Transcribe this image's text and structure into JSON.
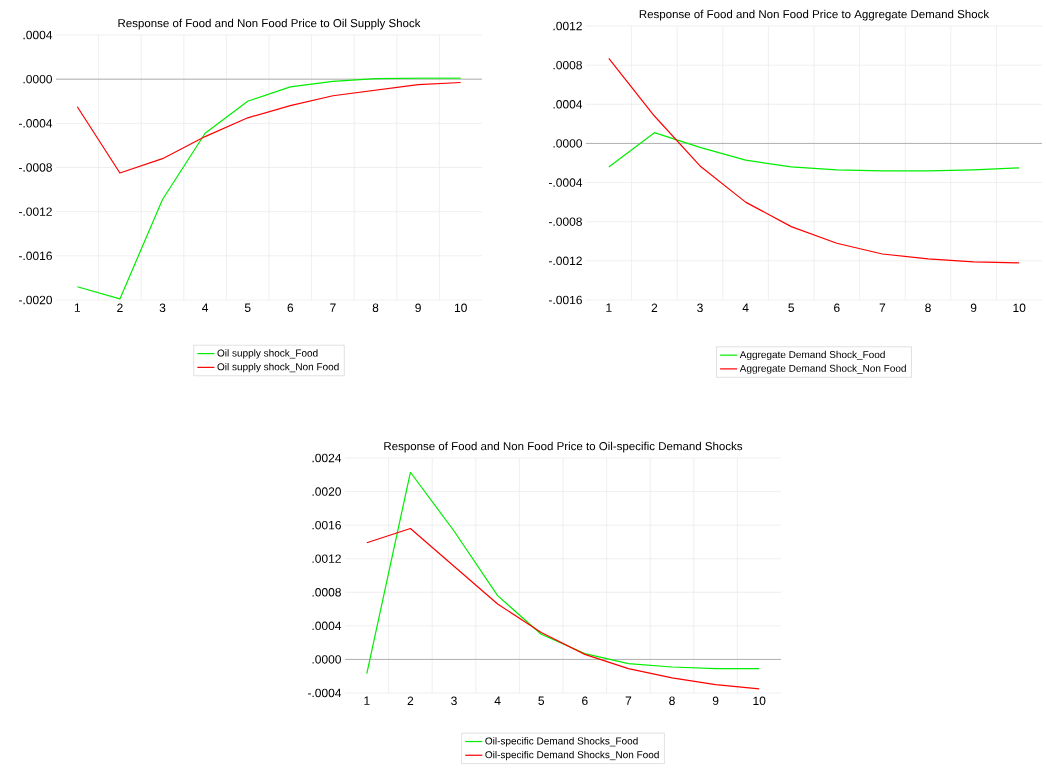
{
  "chart_data": [
    {
      "type": "line",
      "title": "Response of Food and Non Food Price to Oil Supply Shock",
      "categories": [
        "1",
        "2",
        "3",
        "4",
        "5",
        "6",
        "7",
        "8",
        "9",
        "10"
      ],
      "series": [
        {
          "name": "Oil supply shock_Food",
          "color": "#00ee00",
          "values": [
            -0.00188,
            -0.00199,
            -0.00109,
            -0.00049,
            -0.0002,
            -7e-05,
            -2e-05,
            5e-06,
            1e-05,
            1e-05
          ]
        },
        {
          "name": "Oil supply shock_Non Food",
          "color": "#ff0000",
          "values": [
            -0.00025,
            -0.00085,
            -0.00072,
            -0.00052,
            -0.00035,
            -0.00024,
            -0.00015,
            -0.0001,
            -5e-05,
            -3e-05
          ]
        }
      ],
      "ylim": [
        -0.002,
        0.0004
      ],
      "yticks": [
        {
          "value": -0.002,
          "label": "-.0020"
        },
        {
          "value": -0.0016,
          "label": "-.0016"
        },
        {
          "value": -0.0012,
          "label": "-.0012"
        },
        {
          "value": -0.0008,
          "label": "-.0008"
        },
        {
          "value": -0.0004,
          "label": "-.0004"
        },
        {
          "value": 0,
          "label": ".0000"
        },
        {
          "value": 0.0004,
          "label": ".0004"
        }
      ],
      "ref_lines": [
        {
          "axis": "y",
          "value": 0,
          "color": "#a0a0a0"
        }
      ],
      "grid": true,
      "legend": "bottom",
      "marker": "none",
      "line_style": "solid"
    },
    {
      "type": "line",
      "title": "Response of Food and Non Food Price to Aggregate Demand Shock",
      "categories": [
        "1",
        "2",
        "3",
        "4",
        "5",
        "6",
        "7",
        "8",
        "9",
        "10"
      ],
      "series": [
        {
          "name": "Aggregate Demand Shock_Food",
          "color": "#00ee00",
          "values": [
            -0.00024,
            0.00011,
            -4e-05,
            -0.00017,
            -0.00024,
            -0.00027,
            -0.00028,
            -0.00028,
            -0.00027,
            -0.00025
          ]
        },
        {
          "name": "Aggregate Demand Shock_Non Food",
          "color": "#ff0000",
          "values": [
            0.00087,
            0.00028,
            -0.00023,
            -0.0006,
            -0.00085,
            -0.00102,
            -0.00113,
            -0.00118,
            -0.00121,
            -0.00122
          ]
        }
      ],
      "ylim": [
        -0.0016,
        0.0012
      ],
      "yticks": [
        {
          "value": -0.0016,
          "label": "-.0016"
        },
        {
          "value": -0.0012,
          "label": "-.0012"
        },
        {
          "value": -0.0008,
          "label": "-.0008"
        },
        {
          "value": -0.0004,
          "label": "-.0004"
        },
        {
          "value": 0,
          "label": ".0000"
        },
        {
          "value": 0.0004,
          "label": ".0004"
        },
        {
          "value": 0.0008,
          "label": ".0008"
        },
        {
          "value": 0.0012,
          "label": ".0012"
        }
      ],
      "ref_lines": [
        {
          "axis": "y",
          "value": 0,
          "color": "#a0a0a0"
        }
      ],
      "grid": true,
      "legend": "bottom",
      "marker": "none",
      "line_style": "solid"
    },
    {
      "type": "line",
      "title": "Response of Food and Non Food Price to Oil-specific Demand Shocks",
      "categories": [
        "1",
        "2",
        "3",
        "4",
        "5",
        "6",
        "7",
        "8",
        "9",
        "10"
      ],
      "series": [
        {
          "name": "Oil-specific Demand Shocks_Food",
          "color": "#00ee00",
          "values": [
            -0.00017,
            0.00223,
            0.00153,
            0.00076,
            0.0003,
            7e-05,
            -5e-05,
            -9e-05,
            -0.00011,
            -0.00011
          ]
        },
        {
          "name": "Oil-specific Demand Shocks_Non Food",
          "color": "#ff0000",
          "values": [
            0.00139,
            0.00156,
            0.00111,
            0.00066,
            0.00032,
            6e-05,
            -0.00011,
            -0.00022,
            -0.0003,
            -0.00035
          ]
        }
      ],
      "ylim": [
        -0.0004,
        0.0024
      ],
      "yticks": [
        {
          "value": -0.0004,
          "label": "-.0004"
        },
        {
          "value": 0,
          "label": ".0000"
        },
        {
          "value": 0.0004,
          "label": ".0004"
        },
        {
          "value": 0.0008,
          "label": ".0008"
        },
        {
          "value": 0.0012,
          "label": ".0012"
        },
        {
          "value": 0.0016,
          "label": ".0016"
        },
        {
          "value": 0.002,
          "label": ".0020"
        },
        {
          "value": 0.0024,
          "label": ".0024"
        }
      ],
      "ref_lines": [
        {
          "axis": "y",
          "value": 0,
          "color": "#a0a0a0"
        }
      ],
      "grid": true,
      "legend": "bottom",
      "marker": "none",
      "line_style": "solid"
    }
  ]
}
